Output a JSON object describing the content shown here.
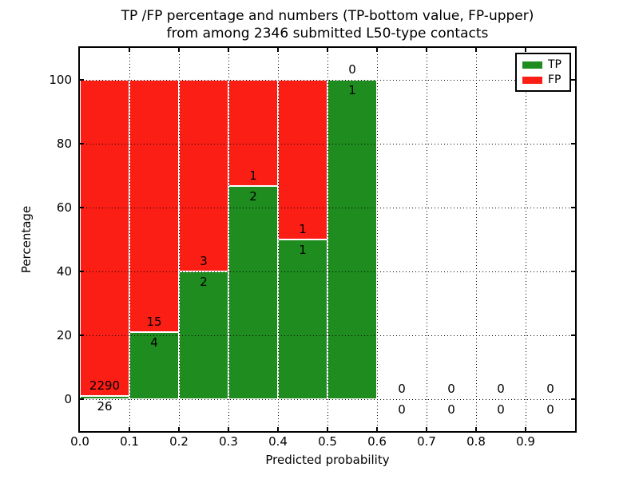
{
  "title": {
    "line1": "TP /FP percentage and numbers (TP-bottom value, FP-upper)",
    "line2": "from among 2346 submitted L50-type contacts"
  },
  "axes": {
    "xlabel": "Predicted probability",
    "ylabel": "Percentage",
    "ytick_labels": [
      "0",
      "20",
      "40",
      "60",
      "80",
      "100"
    ],
    "ytick_values": [
      0,
      20,
      40,
      60,
      80,
      100
    ],
    "xtick_labels": [
      "0.0",
      "0.1",
      "0.2",
      "0.3",
      "0.4",
      "0.5",
      "0.6",
      "0.7",
      "0.8",
      "0.9"
    ],
    "xtick_values": [
      0,
      0.1,
      0.2,
      0.3,
      0.4,
      0.5,
      0.6,
      0.7,
      0.8,
      0.9
    ],
    "ylim": [
      -10,
      110
    ],
    "xlim": [
      0,
      1.0
    ],
    "grid": true
  },
  "legend": {
    "position": "upper-right",
    "items": [
      {
        "label": "TP",
        "color": "#1e8c1e"
      },
      {
        "label": "FP",
        "color": "#fb1e14"
      }
    ]
  },
  "chart_data": {
    "type": "bar",
    "stacked": true,
    "total_contacts": 2346,
    "bin_width": 0.1,
    "note": "TP count shown below segment boundary, FP count above; percentage stacked to 100 for non-empty bins",
    "bins": [
      {
        "range": [
          0.0,
          0.1
        ],
        "tp": 26,
        "fp": 2290,
        "tp_pct": 1.12
      },
      {
        "range": [
          0.1,
          0.2
        ],
        "tp": 4,
        "fp": 15,
        "tp_pct": 21.05
      },
      {
        "range": [
          0.2,
          0.3
        ],
        "tp": 2,
        "fp": 3,
        "tp_pct": 40.0
      },
      {
        "range": [
          0.3,
          0.4
        ],
        "tp": 2,
        "fp": 1,
        "tp_pct": 66.67
      },
      {
        "range": [
          0.4,
          0.5
        ],
        "tp": 1,
        "fp": 1,
        "tp_pct": 50.0
      },
      {
        "range": [
          0.5,
          0.6
        ],
        "tp": 1,
        "fp": 0,
        "tp_pct": 100.0
      },
      {
        "range": [
          0.6,
          0.7
        ],
        "tp": 0,
        "fp": 0,
        "tp_pct": null
      },
      {
        "range": [
          0.7,
          0.8
        ],
        "tp": 0,
        "fp": 0,
        "tp_pct": null
      },
      {
        "range": [
          0.8,
          0.9
        ],
        "tp": 0,
        "fp": 0,
        "tp_pct": null
      },
      {
        "range": [
          0.9,
          1.0
        ],
        "tp": 0,
        "fp": 0,
        "tp_pct": null
      }
    ]
  },
  "colors": {
    "tp": "#1e8c1e",
    "fp": "#fb1e14",
    "grid": "#000000",
    "axis": "#000000",
    "background": "#ffffff"
  }
}
